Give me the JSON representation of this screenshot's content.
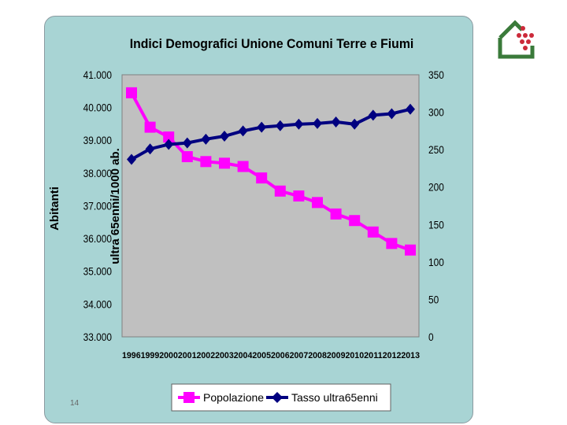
{
  "slide": {
    "page_number": "14"
  },
  "logo": {
    "icon": "house-logo-icon",
    "colors": {
      "house": "#3a7a3a",
      "dots": "#cc2a3a"
    }
  },
  "colors": {
    "panel": "#a8d4d4",
    "plot": "#c0c0c0",
    "popolazione": "#ff00ff",
    "tasso": "#000080"
  },
  "chart_data": {
    "type": "line",
    "title": "Indici Demografici Unione Comuni Terre e Fiumi",
    "ylabel_left": "Abitanti",
    "ylabel_right": "ultra 65enni/1000 ab.",
    "ylim_left": [
      33000,
      41000
    ],
    "ylim_right": [
      0,
      350
    ],
    "yticks_left": [
      "41.000",
      "40.000",
      "39.000",
      "38.000",
      "37.000",
      "36.000",
      "35.000",
      "34.000",
      "33.000"
    ],
    "yticks_right": [
      "350",
      "300",
      "250",
      "200",
      "150",
      "100",
      "50",
      "0"
    ],
    "categories": [
      "1996",
      "1999",
      "2000",
      "2001",
      "2002",
      "2003",
      "2004",
      "2005",
      "2006",
      "2007",
      "2008",
      "2009",
      "2010",
      "2011",
      "2012",
      "2013"
    ],
    "grid": false,
    "legend_position": "bottom",
    "series": [
      {
        "name": "Popolazione",
        "axis": "left",
        "marker": "square",
        "values": [
          40450,
          39400,
          39100,
          38500,
          38350,
          38300,
          38200,
          37850,
          37450,
          37300,
          37100,
          36750,
          36550,
          36200,
          35850,
          35650
        ]
      },
      {
        "name": "Tasso ultra65enni",
        "axis": "right",
        "marker": "diamond",
        "values": [
          237,
          251,
          257,
          259,
          264,
          268,
          275,
          280,
          282,
          284,
          285,
          287,
          284,
          296,
          298,
          304
        ]
      }
    ]
  }
}
